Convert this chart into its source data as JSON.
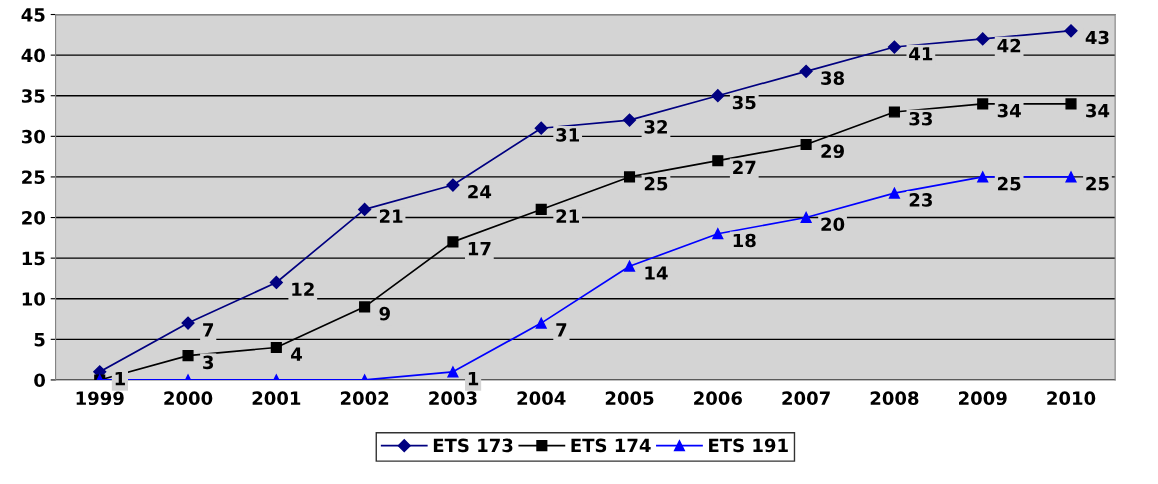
{
  "chart_data": {
    "type": "line",
    "categories": [
      "1999",
      "2000",
      "2001",
      "2002",
      "2003",
      "2004",
      "2005",
      "2006",
      "2007",
      "2008",
      "2009",
      "2010"
    ],
    "series": [
      {
        "name": "ETS 173",
        "color": "#000080",
        "marker": "diamond",
        "values": [
          1,
          7,
          12,
          21,
          24,
          31,
          32,
          35,
          38,
          41,
          42,
          43
        ],
        "value_labels": [
          "1",
          "7",
          "12",
          "21",
          "24",
          "31",
          "32",
          "35",
          "38",
          "41",
          "42",
          "43"
        ]
      },
      {
        "name": "ETS 174",
        "color": "#000000",
        "marker": "square",
        "values": [
          0,
          3,
          4,
          9,
          17,
          21,
          25,
          27,
          29,
          33,
          34,
          34
        ],
        "value_labels": [
          null,
          "3",
          "4",
          "9",
          "17",
          "21",
          "25",
          "27",
          "29",
          "33",
          "34",
          "34"
        ]
      },
      {
        "name": "ETS 191",
        "color": "#0000ff",
        "marker": "triangle",
        "values": [
          0,
          0,
          0,
          0,
          1,
          7,
          14,
          18,
          20,
          23,
          25,
          25
        ],
        "value_labels": [
          null,
          null,
          null,
          null,
          "1",
          "7",
          "14",
          "18",
          "20",
          "23",
          "25",
          "25"
        ]
      }
    ],
    "ylim": [
      0,
      45
    ],
    "yticks": [
      0,
      5,
      10,
      15,
      20,
      25,
      30,
      35,
      40,
      45
    ],
    "grid": "y",
    "legend": "bottom",
    "line_style": "solid"
  }
}
